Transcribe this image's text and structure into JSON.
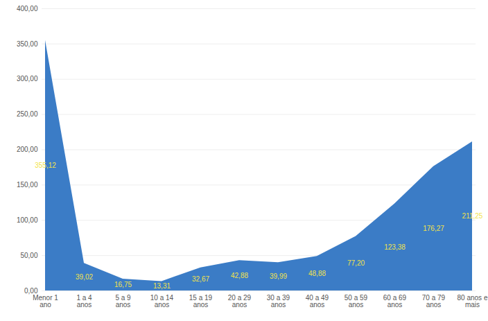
{
  "chart_data": {
    "type": "area",
    "categories": [
      "Menor 1\nano",
      "1 a 4\nanos",
      "5 a 9\nanos",
      "10 a 14\nanos",
      "15 a 19\nanos",
      "20 a 29\nanos",
      "30 a 39\nanos",
      "40 a 49\nanos",
      "50 a 59\nanos",
      "60 a 69\nanos",
      "70 a 79\nanos",
      "80 anos e\nmais"
    ],
    "values": [
      355.12,
      39.02,
      16.75,
      13.31,
      32.67,
      42.88,
      39.99,
      48.88,
      77.2,
      123.38,
      176.27,
      211.25
    ],
    "value_labels": [
      "355,12",
      "39,02",
      "16,75",
      "13,31",
      "32,67",
      "42,88",
      "39,99",
      "48,88",
      "77,20",
      "123,38",
      "176,27",
      "211,25"
    ],
    "color": "#3b7cc6",
    "ylim": [
      0,
      400
    ],
    "yticks": [
      {
        "value": 0,
        "label": "0,00"
      },
      {
        "value": 50,
        "label": "50,00"
      },
      {
        "value": 100,
        "label": "100,00"
      },
      {
        "value": 150,
        "label": "150,00"
      },
      {
        "value": 200,
        "label": "200,00"
      },
      {
        "value": 250,
        "label": "250,00"
      },
      {
        "value": 300,
        "label": "300,00"
      },
      {
        "value": 350,
        "label": "350,00"
      },
      {
        "value": 400,
        "label": "400,00"
      }
    ],
    "grid": true,
    "data_labels": true
  }
}
